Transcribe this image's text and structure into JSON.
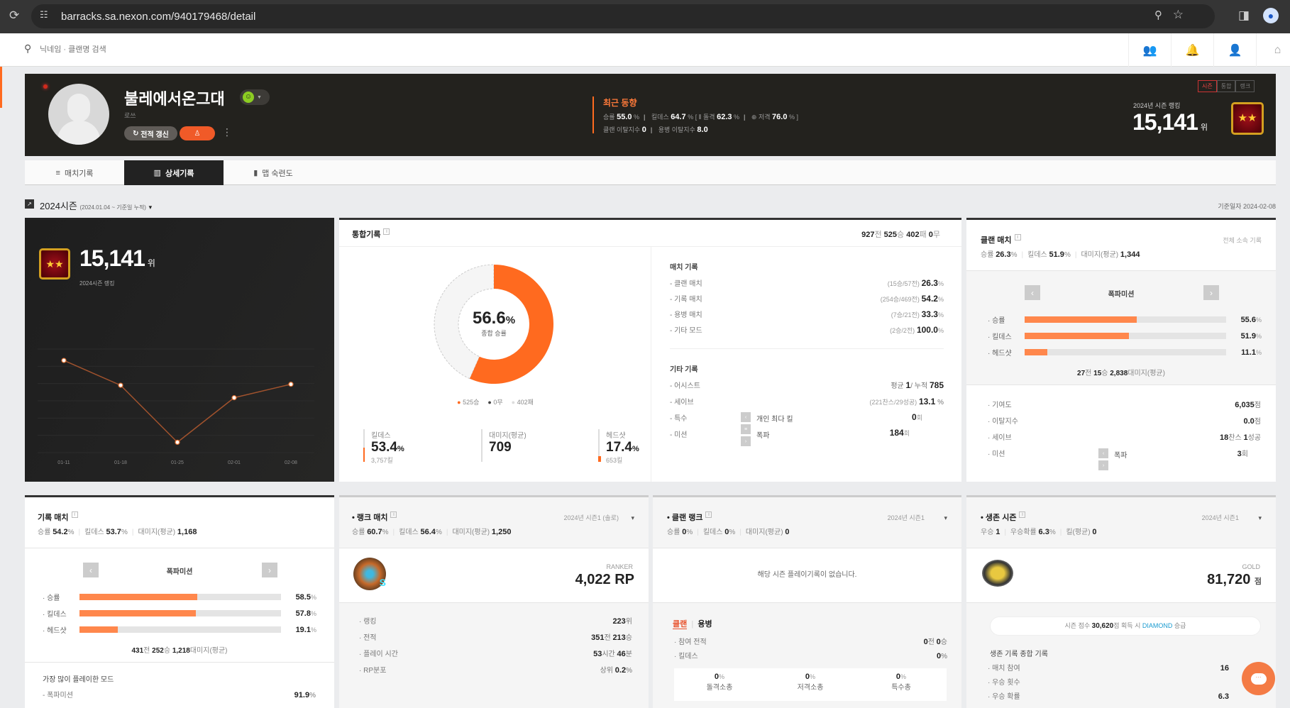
{
  "browser": {
    "url": "barracks.sa.nexon.com/940179468/detail"
  },
  "search": {
    "placeholder": "닉네임 · 클랜명 검색"
  },
  "profile": {
    "nickname": "불레에서온그대",
    "clan": "로쓰",
    "refresh_label": "전적 갱신",
    "recent": {
      "title": "최근 동향",
      "win_label": "승률",
      "win": "55.0",
      "kd_label": "킬데스",
      "kd": "64.7",
      "assault_label": "돌격",
      "assault": "62.3",
      "sniper_label": "저격",
      "sniper": "76.0",
      "clan_leave_label": "클랜 이탈지수",
      "clan_leave": "0",
      "merc_leave_label": "용병 이탈지수",
      "merc_leave": "8.0"
    },
    "rank_toggle": [
      "시즌",
      "통합",
      "랭크"
    ],
    "season_rank_label": "2024년 시즌 랭킹",
    "season_rank": "15,141",
    "rank_unit": "위"
  },
  "tabs": [
    {
      "label": "매치기록"
    },
    {
      "label": "상세기록"
    },
    {
      "label": "맵 숙련도"
    }
  ],
  "section": {
    "title": "2024시즌",
    "range": "(2024.01.04 ~ 기준일 누적)",
    "base_date": "기준일자 2024-02-08"
  },
  "ranking_card": {
    "rank": "15,141",
    "unit": "위",
    "label": "2024시즌 랭킹"
  },
  "chart_data": {
    "type": "line",
    "categories": [
      "01-11",
      "01-18",
      "01-25",
      "02-01",
      "02-08"
    ],
    "values": [
      0.89,
      0.65,
      0.1,
      0.53,
      0.66
    ],
    "ylim": [
      0,
      1
    ],
    "grid": true,
    "colors": {
      "line": "#a0522d",
      "point": "#ffffff"
    }
  },
  "overall": {
    "title": "통합기록",
    "total": "927",
    "win": "525",
    "lose": "402",
    "draw": "0",
    "win_rate": "56.6",
    "win_rate_label": "종합 승률",
    "legend": [
      "525승",
      "0무",
      "402패"
    ],
    "kd_label": "킬데스",
    "kd": "53.4",
    "kills": "3,757킬",
    "dmg_label": "대미지(평균)",
    "dmg": "709",
    "hs_label": "헤드샷",
    "hs": "17.4",
    "hs_kills": "653킬",
    "match_title": "매치 기록",
    "matches": [
      {
        "label": "클랜 매치",
        "detail": "(15승/57전)",
        "value": "26.3"
      },
      {
        "label": "기록 매치",
        "detail": "(254승/469전)",
        "value": "54.2"
      },
      {
        "label": "용병 매치",
        "detail": "(7승/21전)",
        "value": "33.3"
      },
      {
        "label": "기타 모드",
        "detail": "(2승/2전)",
        "value": "100.0"
      }
    ],
    "etc_title": "기타 기록",
    "assist_label": "어시스트",
    "assist_avg_label": "평균",
    "assist_avg": "1",
    "assist_total_label": "누적",
    "assist_total": "785",
    "save_label": "세이브",
    "save_detail": "(221찬스/29성공)",
    "save": "13.1",
    "special_label": "특수",
    "mission_label": "미션",
    "sub1_label": "개인 최다 킬",
    "sub1_value": "0",
    "sub2_label": "폭파",
    "sub2_value": "184",
    "count_unit": "회"
  },
  "clan_match": {
    "title": "클랜 매치",
    "all_link": "전체 소속 기록",
    "win": "26.3",
    "kd": "51.9",
    "dmg": "1,344",
    "mode": "폭파미션",
    "bars": [
      {
        "label": "승률",
        "value": 55.6
      },
      {
        "label": "킬데스",
        "value": 51.9
      },
      {
        "label": "헤드샷",
        "value": 11.1
      }
    ],
    "summary": {
      "games": "27",
      "wins": "15",
      "dmg": "2,838"
    },
    "contrib_label": "기여도",
    "contrib": "6,035",
    "leave_label": "이탈지수",
    "leave": "0.0",
    "score_unit": "점",
    "save_label": "세이브",
    "save_chance": "18",
    "save_success": "1",
    "mission_label": "미션",
    "mission_sub": "폭파",
    "mission_value": "3"
  },
  "record_match": {
    "title": "기록 매치",
    "win": "54.2",
    "kd": "53.7",
    "dmg": "1,168",
    "mode": "폭파미션",
    "bars": [
      {
        "label": "승률",
        "value": 58.5
      },
      {
        "label": "킬데스",
        "value": 57.8
      },
      {
        "label": "헤드샷",
        "value": 19.1
      }
    ],
    "summary": {
      "games": "431",
      "wins": "252",
      "dmg": "1,218"
    },
    "most_title": "가장 많이 플레이한 모드",
    "most_mode": "폭파미션",
    "most_value": "91.9"
  },
  "rank_match": {
    "title": "랭크 매치",
    "season": "2024년 시즌1 (솔로)",
    "win": "60.7",
    "kd": "56.4",
    "dmg": "1,250",
    "tier": "RANKER",
    "rp": "4,022 RP",
    "rows": [
      {
        "label": "랭킹",
        "value": "223",
        "unit": "위"
      },
      {
        "label": "전적",
        "value": "351",
        "unit": "전",
        "value2": "213",
        "unit2": "승"
      },
      {
        "label": "플레이 시간",
        "value": "53",
        "unit": "시간",
        "value2": "46",
        "unit2": "분"
      },
      {
        "label": "RP분포",
        "prefix": "상위",
        "value": "0.2",
        "unit": "%"
      }
    ]
  },
  "clan_rank": {
    "title": "클랜 랭크",
    "season": "2024년 시즌1",
    "win": "0",
    "kd": "0",
    "dmg": "0",
    "empty": "해당 시즌 플레이기록이 없습니다.",
    "tab_clan": "클랜",
    "tab_merc": "용병",
    "games_label": "참여 전적",
    "games": "0",
    "wins": "0",
    "kd_label": "킬데스",
    "kd2": "0",
    "boxes": [
      {
        "value": "0",
        "label": "돌격소총"
      },
      {
        "value": "0",
        "label": "저격소총"
      },
      {
        "value": "0",
        "label": "특수총"
      }
    ]
  },
  "survival": {
    "title": "생존 시즌",
    "season": "2024년 시즌1",
    "wins_label": "우승",
    "wins": "1",
    "rate_label": "우승확률",
    "rate": "6.3",
    "kill_label": "킬(평균)",
    "kill": "0",
    "tier": "GOLD",
    "score": "81,720",
    "score_unit": "점",
    "promo_pre": "시즌 점수",
    "promo_score": "30,620",
    "promo_mid": "점 획득 시",
    "promo_tier": "DIAMOND",
    "promo_post": "승급",
    "summary_title": "생존 기록 종합 기록",
    "rows": [
      {
        "label": "매치 참여",
        "value": "16"
      },
      {
        "label": "우승 횟수",
        "value": ""
      },
      {
        "label": "우승 확률",
        "value": "6.3"
      }
    ]
  },
  "labels": {
    "win": "승률",
    "kd": "킬데스",
    "dmg": "대미지(평균)",
    "pct": "%",
    "games": "전",
    "wins": "승",
    "lose": "패",
    "draw": "무",
    "dmg_avg": "대미지(평균)"
  },
  "colors": {
    "accent": "#ff6a1f",
    "dark": "#23221e",
    "diamond": "#1a9bd0"
  }
}
